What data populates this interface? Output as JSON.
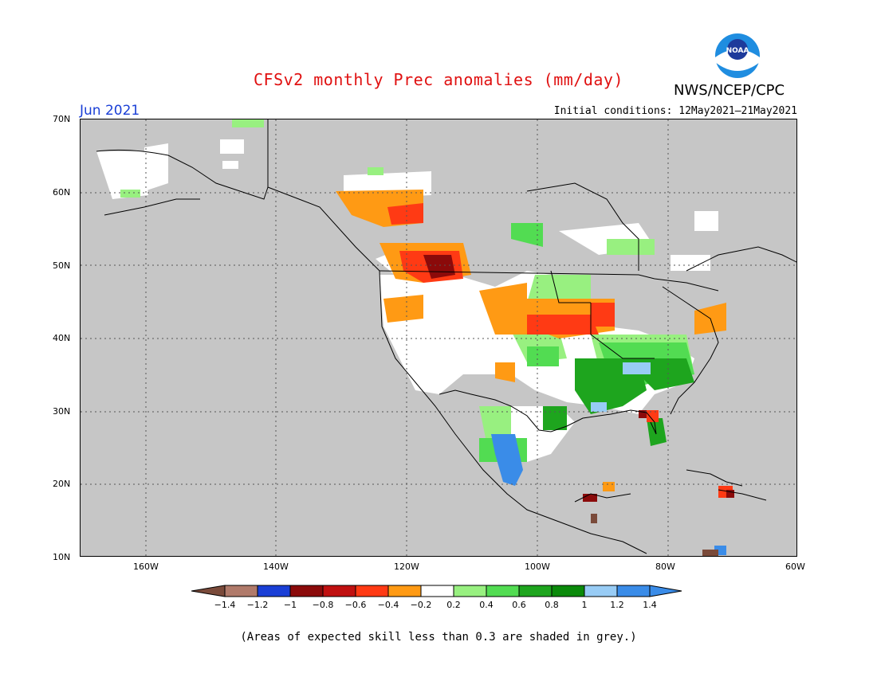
{
  "title": "CFSv2 monthly Prec anomalies (mm/day)",
  "org": "NWS/NCEP/CPC",
  "logo_text": "NOAA",
  "month": "Jun 2021",
  "initial_conditions": "Initial conditions: 12May2021–21May2021",
  "footnote": "(Areas of expected skill less than 0.3 are shaded in grey.)",
  "map": {
    "lon_range": [
      -170,
      -60
    ],
    "lat_range": [
      10,
      70
    ],
    "lat_ticks": [
      "70N",
      "60N",
      "50N",
      "40N",
      "30N",
      "20N",
      "10N"
    ],
    "lon_ticks": [
      "160W",
      "140W",
      "120W",
      "100W",
      "80W",
      "60W"
    ]
  },
  "colorbar": {
    "labels": [
      "−1.4",
      "−1.2",
      "−1",
      "−0.8",
      "−0.6",
      "−0.4",
      "−0.2",
      "0.2",
      "0.4",
      "0.6",
      "0.8",
      "1",
      "1.2",
      "1.4"
    ],
    "colors": [
      "#7a4a3a",
      "#b07a6a",
      "#1a3fd6",
      "#8b0a0a",
      "#c01010",
      "#ff3a14",
      "#ff9a14",
      "#ffffff",
      "#98f080",
      "#52dc52",
      "#1ea51e",
      "#0a8a0a",
      "#98ccf5",
      "#3a8ce8",
      "#3a8ce8"
    ]
  },
  "regions": [
    {
      "name": "pacific-nw-canada-dry",
      "color": "#ff9a14"
    },
    {
      "name": "northern-rockies-strong-dry",
      "color": "#ff3a14"
    },
    {
      "name": "upper-midwest-dry",
      "color": "#ff9a14"
    },
    {
      "name": "southeast-wet",
      "color": "#1ea51e"
    },
    {
      "name": "mexico-very-wet",
      "color": "#3a8ce8"
    }
  ]
}
